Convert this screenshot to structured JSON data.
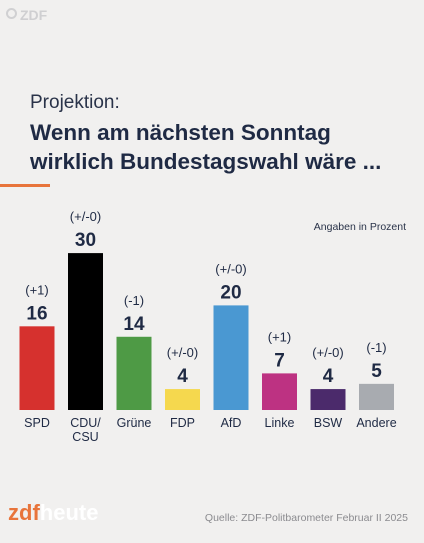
{
  "watermark": {
    "text": "ZDF"
  },
  "kicker": "Projektion:",
  "headline": "Wenn am nächsten Sonntag wirklich Bundestagswahl wäre ...",
  "units_note": "Angaben in Prozent",
  "brand": {
    "part1": "zdf",
    "part2": "heute"
  },
  "source": "Quelle: ZDF-Politbarometer Februar II 2025",
  "colors": {
    "accent": "#e8743b",
    "text": "#1f2a44",
    "background": "#f1f0ef"
  },
  "chart_data": {
    "type": "bar",
    "title": "Wenn am nächsten Sonntag wirklich Bundestagswahl wäre ...",
    "ylabel": "Angaben in Prozent",
    "ylim": [
      0,
      30
    ],
    "grid": false,
    "categories": [
      "SPD",
      "CDU/\nCSU",
      "Grüne",
      "FDP",
      "AfD",
      "Linke",
      "BSW",
      "Andere"
    ],
    "values": [
      16,
      30,
      14,
      4,
      20,
      7,
      4,
      5
    ],
    "changes": [
      "(+1)",
      "(+/-0)",
      "(-1)",
      "(+/-0)",
      "(+/-0)",
      "(+1)",
      "(+/-0)",
      "(-1)"
    ],
    "colors": [
      "#d6312e",
      "#000000",
      "#4e9a45",
      "#f5d84e",
      "#4a98d2",
      "#bd3282",
      "#4b2a6b",
      "#a8abb0"
    ]
  }
}
